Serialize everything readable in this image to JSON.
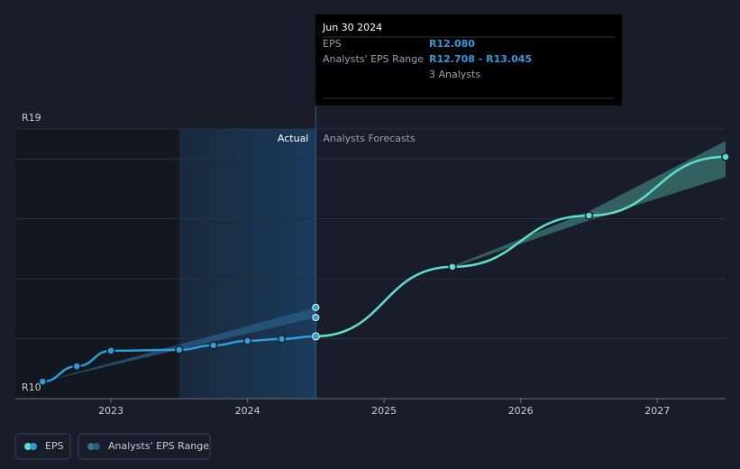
{
  "chart_data": {
    "type": "line",
    "xlim": [
      2022.3,
      2027.5
    ],
    "xticks": [
      2023,
      2024,
      2025,
      2026,
      2027
    ],
    "ylim": [
      10,
      19
    ],
    "yticks": [
      {
        "value": 10,
        "label": "R10"
      },
      {
        "value": 12,
        "label": null
      },
      {
        "value": 14,
        "label": null
      },
      {
        "value": 16,
        "label": null
      },
      {
        "value": 18,
        "label": null
      },
      {
        "value": 19,
        "label": "R19"
      }
    ],
    "grid": true,
    "highlight_x": [
      2023.5,
      2024.5
    ],
    "divider_x": 2024.5,
    "divider_labels": [
      "Actual",
      "Analysts Forecasts"
    ],
    "series": [
      {
        "name": "EPS",
        "color": "#2d9cdb",
        "x": [
          2022.5,
          2022.75,
          2023.0,
          2023.5,
          2023.75,
          2024.0,
          2024.25,
          2024.5
        ],
        "values": [
          10.57,
          11.08,
          11.6,
          11.63,
          11.78,
          11.93,
          11.99,
          12.08
        ]
      }
    ],
    "forecast": {
      "color": "#5de0c6",
      "x": [
        2024.5,
        2025.5,
        2026.5,
        2027.5
      ],
      "values": [
        12.08,
        14.4,
        16.11,
        18.07
      ]
    },
    "range": {
      "name": "Analysts' EPS Range",
      "color": "#2a5d86",
      "x": [
        2022.5,
        2024.5
      ],
      "low": [
        10.57,
        12.708
      ],
      "high": [
        10.57,
        13.045
      ]
    },
    "forecast_range": {
      "color": "#3b7873",
      "x": [
        2025.5,
        2026.5,
        2027.5
      ],
      "low": [
        14.38,
        15.95,
        17.4
      ],
      "high": [
        14.42,
        16.25,
        18.6
      ]
    },
    "tooltip": {
      "date": "Jun 30 2024",
      "rows": [
        [
          "EPS",
          "R12.080"
        ],
        [
          "Analysts' EPS Range",
          "R12.708 - R13.045"
        ],
        [
          "",
          "3 Analysts"
        ]
      ]
    }
  }
}
